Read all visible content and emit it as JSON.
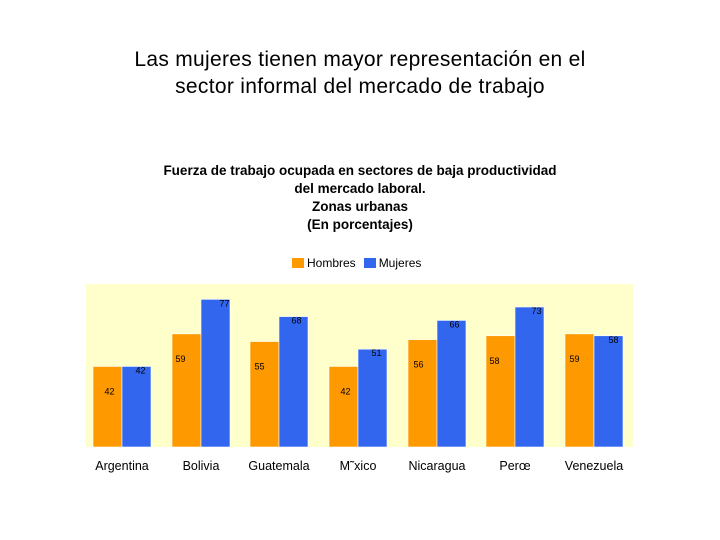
{
  "slide": {
    "title_line1": "Las mujeres tienen mayor representación en el",
    "title_line2": "sector informal del mercado de trabajo"
  },
  "chart_data": {
    "type": "bar",
    "title_lines": [
      "Fuerza de trabajo ocupada en sectores de baja productividad",
      "del mercado laboral.",
      "Zonas urbanas",
      "(En porcentajes)"
    ],
    "categories": [
      "Argentina",
      "Bolivia",
      "Guatemala",
      "M˜xico",
      "Nicaragua",
      "Perœ",
      "Venezuela"
    ],
    "series": [
      {
        "name": "Hombres",
        "color": "#ff9900",
        "values": [
          42,
          59,
          55,
          42,
          56,
          58,
          59
        ]
      },
      {
        "name": "Mujeres",
        "color": "#3366ee",
        "values": [
          42,
          77,
          68,
          51,
          66,
          73,
          58
        ]
      }
    ],
    "ylim": [
      0,
      85
    ],
    "plot_background": "#ffffcc",
    "legend_position": "top-center",
    "xlabel": "",
    "ylabel": ""
  }
}
